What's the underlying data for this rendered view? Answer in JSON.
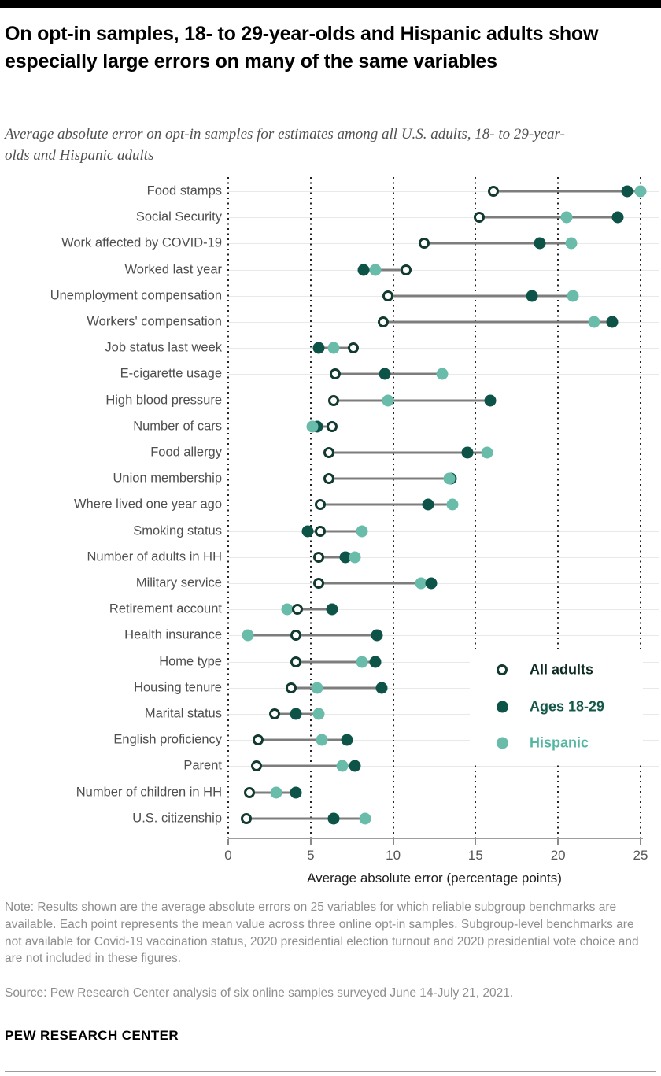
{
  "header": {
    "title": "On opt-in samples, 18- to 29-year-olds and Hispanic adults show especially large errors on many of the same variables",
    "subtitle": "Average absolute error on opt-in samples for estimates among all U.S. adults, 18- to 29-year-olds and Hispanic adults"
  },
  "chart_data": {
    "type": "scatter",
    "subtype": "dumbbell-dot-plot",
    "xlabel": "Average absolute error (percentage points)",
    "xlim": [
      0,
      25
    ],
    "xticks": [
      0,
      5,
      10,
      15,
      20,
      25
    ],
    "grid": "vertical-dotted",
    "legend_position": "inside-right",
    "legend": [
      {
        "key": "all",
        "label": "All adults",
        "style": "open-circle"
      },
      {
        "key": "ages",
        "label": "Ages 18-29",
        "style": "filled-dark-green"
      },
      {
        "key": "hispanic",
        "label": "Hispanic",
        "style": "filled-teal"
      }
    ],
    "colors": {
      "ages_fill": "#0d5348",
      "hispanic_fill": "#68bca9",
      "all_stroke": "#123a30",
      "legend_all_text": "#0e2b23",
      "legend_ages_text": "#14584a",
      "legend_hispanic_text": "#56b6a2"
    },
    "rows": [
      {
        "category": "Food stamps",
        "all": 16.1,
        "ages": 24.2,
        "hispanic": 25.0,
        "z": [
          "all",
          "ages",
          "hispanic"
        ]
      },
      {
        "category": "Social Security",
        "all": 15.2,
        "ages": 23.6,
        "hispanic": 20.5,
        "z": [
          "all",
          "hispanic",
          "ages"
        ]
      },
      {
        "category": "Work affected by COVID-19",
        "all": 11.9,
        "ages": 18.9,
        "hispanic": 20.8,
        "z": [
          "all",
          "ages",
          "hispanic"
        ]
      },
      {
        "category": "Worked last year",
        "all": 10.8,
        "ages": 8.2,
        "hispanic": 8.9,
        "z": [
          "ages",
          "hispanic",
          "all"
        ]
      },
      {
        "category": "Unemployment compensation",
        "all": 9.7,
        "ages": 18.4,
        "hispanic": 20.9,
        "z": [
          "all",
          "ages",
          "hispanic"
        ]
      },
      {
        "category": "Workers' compensation",
        "all": 9.4,
        "ages": 23.3,
        "hispanic": 22.2,
        "z": [
          "all",
          "hispanic",
          "ages"
        ]
      },
      {
        "category": "Job status last week",
        "all": 7.6,
        "ages": 5.5,
        "hispanic": 6.4,
        "z": [
          "ages",
          "hispanic",
          "all"
        ]
      },
      {
        "category": "E-cigarette usage",
        "all": 6.5,
        "ages": 9.5,
        "hispanic": 13.0,
        "z": [
          "all",
          "ages",
          "hispanic"
        ]
      },
      {
        "category": "High blood pressure",
        "all": 6.4,
        "ages": 15.9,
        "hispanic": 9.7,
        "z": [
          "all",
          "hispanic",
          "ages"
        ]
      },
      {
        "category": "Number of cars",
        "all": 6.3,
        "ages": 5.4,
        "hispanic": 5.1,
        "z": [
          "ages",
          "hispanic",
          "all"
        ]
      },
      {
        "category": "Food allergy",
        "all": 6.1,
        "ages": 14.5,
        "hispanic": 15.7,
        "z": [
          "all",
          "ages",
          "hispanic"
        ]
      },
      {
        "category": "Union membership",
        "all": 6.1,
        "ages": 13.5,
        "hispanic": 13.4,
        "z": [
          "all",
          "ages",
          "hispanic"
        ]
      },
      {
        "category": "Where lived one year ago",
        "all": 5.6,
        "ages": 12.1,
        "hispanic": 13.6,
        "z": [
          "all",
          "ages",
          "hispanic"
        ]
      },
      {
        "category": "Smoking status",
        "all": 5.6,
        "ages": 4.8,
        "hispanic": 8.1,
        "z": [
          "ages",
          "hispanic",
          "all"
        ]
      },
      {
        "category": "Number of adults in HH",
        "all": 5.5,
        "ages": 7.1,
        "hispanic": 7.7,
        "z": [
          "all",
          "ages",
          "hispanic"
        ]
      },
      {
        "category": "Military service",
        "all": 5.5,
        "ages": 12.3,
        "hispanic": 11.7,
        "z": [
          "all",
          "hispanic",
          "ages"
        ]
      },
      {
        "category": "Retirement account",
        "all": 4.2,
        "ages": 6.3,
        "hispanic": 3.6,
        "z": [
          "hispanic",
          "ages",
          "all"
        ]
      },
      {
        "category": "Health insurance",
        "all": 4.1,
        "ages": 9.0,
        "hispanic": 1.2,
        "z": [
          "hispanic",
          "all",
          "ages"
        ]
      },
      {
        "category": "Home type",
        "all": 4.1,
        "ages": 8.9,
        "hispanic": 8.1,
        "z": [
          "all",
          "hispanic",
          "ages"
        ]
      },
      {
        "category": "Housing tenure",
        "all": 3.8,
        "ages": 9.3,
        "hispanic": 5.4,
        "z": [
          "all",
          "hispanic",
          "ages"
        ]
      },
      {
        "category": "Marital status",
        "all": 2.8,
        "ages": 4.1,
        "hispanic": 5.5,
        "z": [
          "all",
          "ages",
          "hispanic"
        ]
      },
      {
        "category": "English proficiency",
        "all": 1.8,
        "ages": 7.2,
        "hispanic": 5.7,
        "z": [
          "all",
          "hispanic",
          "ages"
        ]
      },
      {
        "category": "Parent",
        "all": 1.7,
        "ages": 7.7,
        "hispanic": 6.9,
        "z": [
          "all",
          "hispanic",
          "ages"
        ]
      },
      {
        "category": "Number of children in HH",
        "all": 1.3,
        "ages": 4.1,
        "hispanic": 2.9,
        "z": [
          "all",
          "hispanic",
          "ages"
        ]
      },
      {
        "category": "U.S. citizenship",
        "all": 1.1,
        "ages": 6.4,
        "hispanic": 8.3,
        "z": [
          "all",
          "ages",
          "hispanic"
        ]
      }
    ]
  },
  "footer": {
    "note": "Note: Results shown are the average absolute errors on 25 variables for which reliable subgroup benchmarks are available. Each point represents the mean value across three online opt-in samples. Subgroup-level benchmarks are not available for Covid-19 vaccination status, 2020 presidential election turnout and 2020 presidential vote choice and are not included in these figures.",
    "source": "Source: Pew Research Center analysis of six online samples surveyed June 14-July 21, 2021.",
    "brand": "PEW RESEARCH CENTER"
  }
}
